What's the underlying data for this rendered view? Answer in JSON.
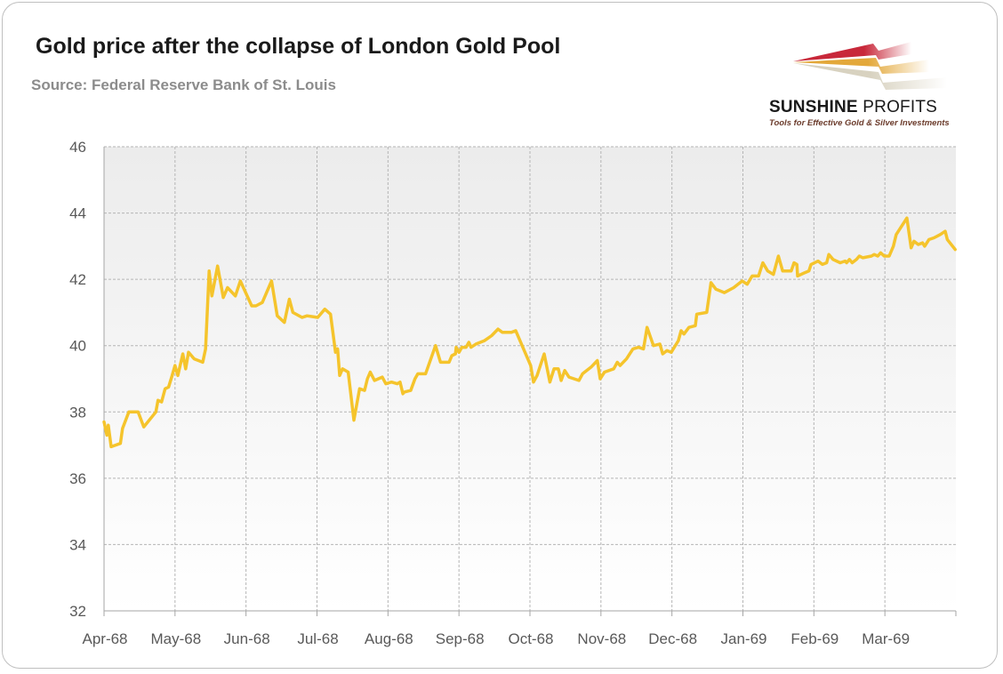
{
  "chart_data": {
    "type": "line",
    "title": "Gold price after the collapse of London Gold Pool",
    "subtitle": "Source: Federal Reserve Bank of St. Louis",
    "xlabel": "",
    "ylabel": "",
    "ylim": [
      32,
      46
    ],
    "yticks": [
      32,
      34,
      36,
      38,
      40,
      42,
      44,
      46
    ],
    "xlim_months": [
      0,
      12
    ],
    "xtick_labels": [
      "Apr-68",
      "May-68",
      "Jun-68",
      "Jul-68",
      "Aug-68",
      "Sep-68",
      "Oct-68",
      "Nov-68",
      "Dec-68",
      "Jan-69",
      "Feb-69",
      "Mar-69"
    ],
    "grid": true,
    "legend": "none",
    "series": [
      {
        "name": "Gold price",
        "color": "#f5c42c",
        "x_months_since_apr68": [
          0,
          0.04,
          0.06,
          0.1,
          0.23,
          0.26,
          0.35,
          0.48,
          0.56,
          0.73,
          0.76,
          0.81,
          0.86,
          0.91,
          0.96,
          1.0,
          1.04,
          1.11,
          1.15,
          1.19,
          1.27,
          1.39,
          1.43,
          1.48,
          1.52,
          1.6,
          1.68,
          1.74,
          1.85,
          1.92,
          2.08,
          2.14,
          2.23,
          2.36,
          2.44,
          2.54,
          2.61,
          2.66,
          2.79,
          2.86,
          3.01,
          3.11,
          3.19,
          3.26,
          3.29,
          3.32,
          3.36,
          3.44,
          3.52,
          3.6,
          3.67,
          3.71,
          3.75,
          3.81,
          3.92,
          3.97,
          4.05,
          4.13,
          4.17,
          4.21,
          4.23,
          4.32,
          4.38,
          4.42,
          4.53,
          4.67,
          4.74,
          4.86,
          4.9,
          4.95,
          4.96,
          5.0,
          5.04,
          5.1,
          5.14,
          5.17,
          5.24,
          5.36,
          5.46,
          5.55,
          5.61,
          5.74,
          5.8,
          5.93,
          6.01,
          6.05,
          6.1,
          6.2,
          6.28,
          6.34,
          6.4,
          6.44,
          6.49,
          6.55,
          6.69,
          6.74,
          6.86,
          6.95,
          6.99,
          7.05,
          7.18,
          7.23,
          7.27,
          7.36,
          7.45,
          7.53,
          7.6,
          7.65,
          7.74,
          7.83,
          7.87,
          7.93,
          7.99,
          8.09,
          8.13,
          8.17,
          8.24,
          8.33,
          8.35,
          8.49,
          8.55,
          8.62,
          8.74,
          8.87,
          8.99,
          9.06,
          9.13,
          9.22,
          9.28,
          9.35,
          9.43,
          9.5,
          9.56,
          9.68,
          9.72,
          9.76,
          9.77,
          9.87,
          9.93,
          9.96,
          10.06,
          10.12,
          10.18,
          10.21,
          10.27,
          10.37,
          10.44,
          10.46,
          10.5,
          10.54,
          10.6,
          10.64,
          10.69,
          10.81,
          10.85,
          10.9,
          10.94,
          10.99,
          11.06,
          11.12,
          11.16,
          11.31,
          11.37,
          11.41,
          11.47,
          11.53,
          11.56,
          11.62,
          11.69,
          11.78,
          11.85,
          11.88,
          11.99
        ],
        "values": [
          37.7,
          37.3,
          37.6,
          36.95,
          37.05,
          37.5,
          38.0,
          38.0,
          37.55,
          38.0,
          38.35,
          38.3,
          38.7,
          38.75,
          39.1,
          39.4,
          39.1,
          39.75,
          39.3,
          39.8,
          39.6,
          39.5,
          39.9,
          42.25,
          41.5,
          42.4,
          41.45,
          41.75,
          41.5,
          41.95,
          41.2,
          41.2,
          41.3,
          41.95,
          40.9,
          40.7,
          41.4,
          41.0,
          40.85,
          40.9,
          40.85,
          41.1,
          40.95,
          39.8,
          39.9,
          39.1,
          39.3,
          39.2,
          37.75,
          38.7,
          38.65,
          39.0,
          39.2,
          38.95,
          39.05,
          38.85,
          38.9,
          38.85,
          38.9,
          38.55,
          38.6,
          38.65,
          39.0,
          39.15,
          39.15,
          40.0,
          39.5,
          39.5,
          39.7,
          39.75,
          39.95,
          39.8,
          39.95,
          39.95,
          40.1,
          39.95,
          40.05,
          40.15,
          40.3,
          40.5,
          40.4,
          40.4,
          40.45,
          39.8,
          39.4,
          38.9,
          39.1,
          39.75,
          38.9,
          39.3,
          39.3,
          38.95,
          39.25,
          39.05,
          38.95,
          39.15,
          39.35,
          39.55,
          39.0,
          39.2,
          39.3,
          39.5,
          39.4,
          39.6,
          39.9,
          39.95,
          39.9,
          40.55,
          40.0,
          40.05,
          39.75,
          39.85,
          39.8,
          40.15,
          40.45,
          40.35,
          40.55,
          40.6,
          40.95,
          41.0,
          41.9,
          41.7,
          41.6,
          41.75,
          41.95,
          41.85,
          42.1,
          42.1,
          42.5,
          42.25,
          42.15,
          42.7,
          42.25,
          42.25,
          42.5,
          42.45,
          42.1,
          42.2,
          42.25,
          42.45,
          42.55,
          42.45,
          42.5,
          42.75,
          42.6,
          42.5,
          42.55,
          42.5,
          42.6,
          42.5,
          42.6,
          42.7,
          42.65,
          42.7,
          42.75,
          42.7,
          42.8,
          42.7,
          42.7,
          43.0,
          43.35,
          43.85,
          42.95,
          43.15,
          43.05,
          43.1,
          43.0,
          43.2,
          43.25,
          43.35,
          43.45,
          43.2,
          42.9
        ]
      }
    ]
  },
  "logo": {
    "name_bold": "SUNSHINE",
    "name_thin": "PROFITS",
    "tagline": "Tools for Effective Gold & Silver Investments"
  }
}
